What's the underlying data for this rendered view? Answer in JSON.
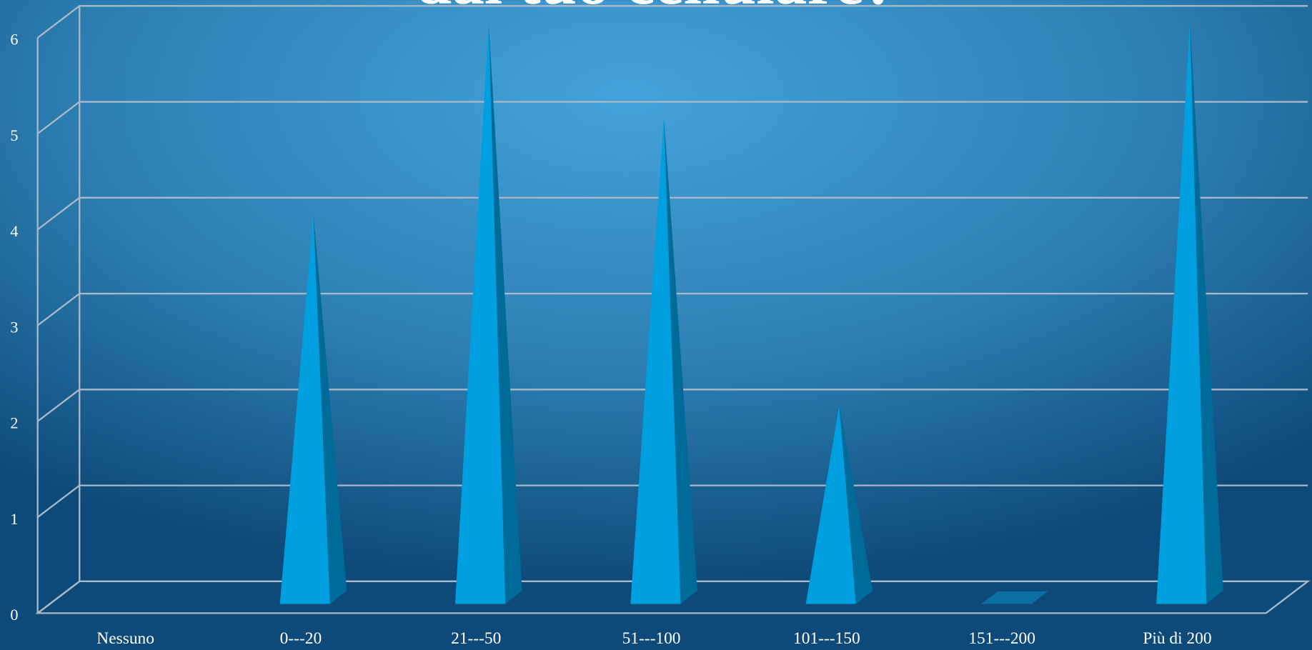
{
  "chart_data": {
    "type": "pyramid",
    "title": "dal tuo cellulare?",
    "categories": [
      "Nessuno",
      "0---20",
      "21---50",
      "51---100",
      "101---150",
      "151---200",
      "Più di 200"
    ],
    "values": [
      null,
      4,
      6,
      5,
      2,
      0,
      6
    ],
    "color": "#009fe0",
    "ylim": [
      0,
      6
    ],
    "yticks": [
      0,
      1,
      2,
      3,
      4,
      5,
      6
    ],
    "grid": true
  }
}
